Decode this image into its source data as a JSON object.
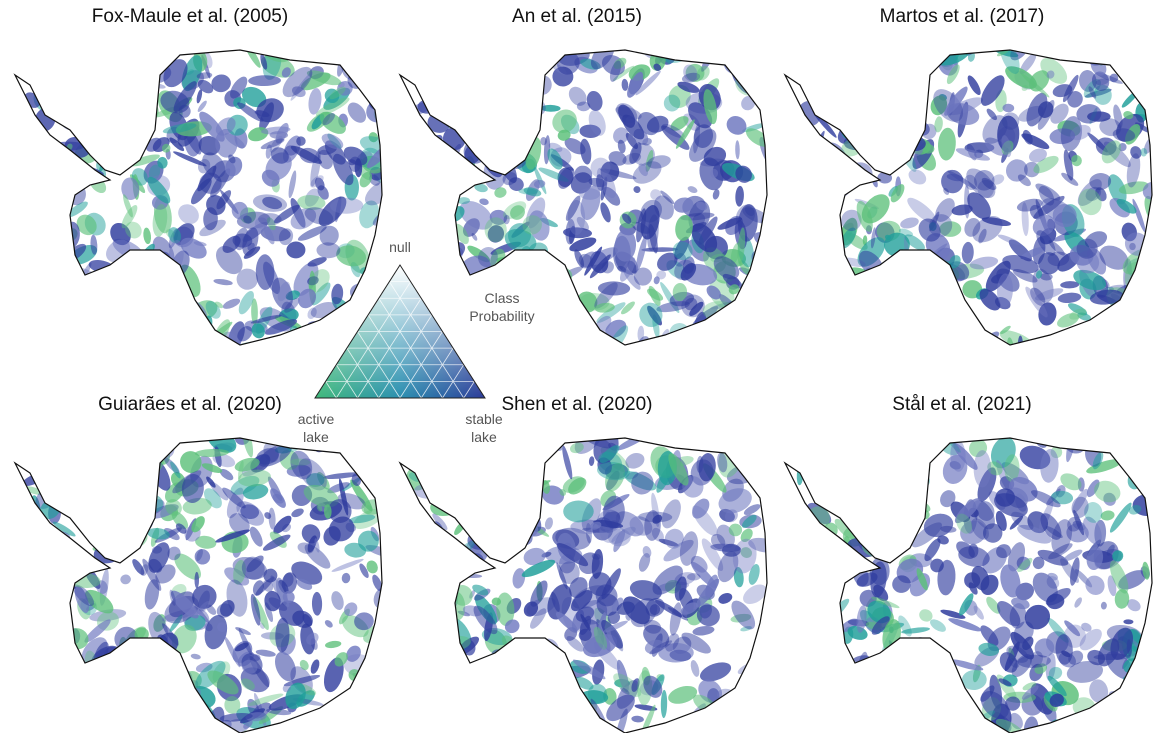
{
  "panels": [
    {
      "title": "Fox-Maule et al. (2005)"
    },
    {
      "title": "An et al. (2015)"
    },
    {
      "title": "Martos et al. (2017)"
    },
    {
      "title": "Guiarães et al. (2020)"
    },
    {
      "title": "Shen et al. (2020)"
    },
    {
      "title": "Stål et al. (2021)"
    }
  ],
  "legend": {
    "top": "null",
    "title": [
      "Class",
      "Probability"
    ],
    "left": [
      "active",
      "lake"
    ],
    "right": [
      "stable",
      "lake"
    ]
  }
}
